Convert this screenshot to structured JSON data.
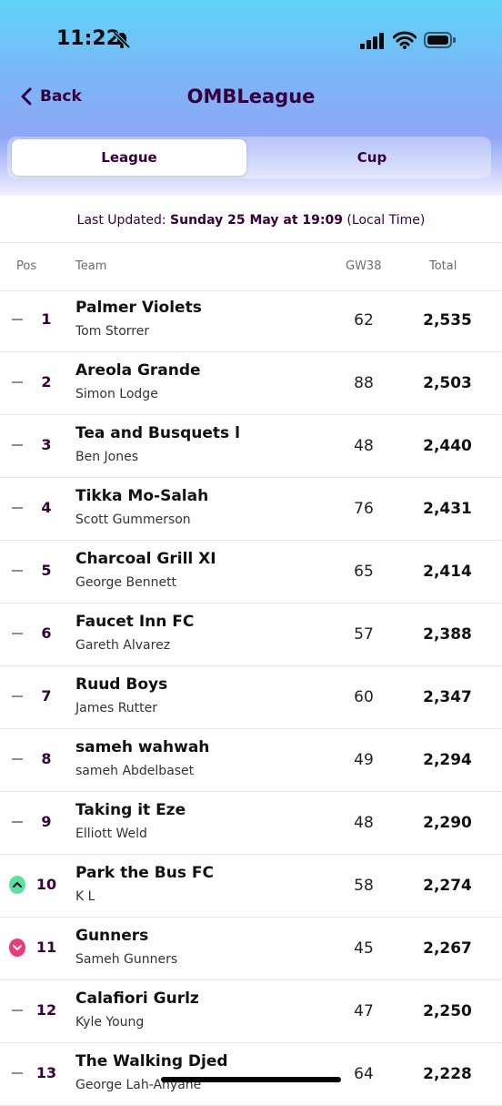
{
  "status_bar": {
    "time": "11:22"
  },
  "nav": {
    "back_label": "Back",
    "title": "OMBLeague"
  },
  "tabs": [
    {
      "label": "League",
      "active": true
    },
    {
      "label": "Cup",
      "active": false
    }
  ],
  "last_updated": {
    "prefix": "Last Updated:",
    "date": "Sunday 25 May at 19:09",
    "suffix": "(Local Time)"
  },
  "columns": {
    "pos": "Pos",
    "team": "Team",
    "gw": "GW38",
    "total": "Total"
  },
  "colors": {
    "up": "#58e39a",
    "down": "#e93b7a",
    "same": "#8e8e97",
    "brand": "#37003c"
  },
  "rows": [
    {
      "pos": "1",
      "team": "Palmer Violets",
      "manager": "Tom Storrer",
      "gw": "62",
      "total": "2,535",
      "move": "same"
    },
    {
      "pos": "2",
      "team": "Areola Grande",
      "manager": "Simon Lodge",
      "gw": "88",
      "total": "2,503",
      "move": "same"
    },
    {
      "pos": "3",
      "team": "Tea and Busquets l",
      "manager": "Ben Jones",
      "gw": "48",
      "total": "2,440",
      "move": "same"
    },
    {
      "pos": "4",
      "team": "Tikka Mo-Salah",
      "manager": "Scott Gummerson",
      "gw": "76",
      "total": "2,431",
      "move": "same"
    },
    {
      "pos": "5",
      "team": "Charcoal Grill XI",
      "manager": "George Bennett",
      "gw": "65",
      "total": "2,414",
      "move": "same"
    },
    {
      "pos": "6",
      "team": "Faucet Inn FC",
      "manager": "Gareth Alvarez",
      "gw": "57",
      "total": "2,388",
      "move": "same"
    },
    {
      "pos": "7",
      "team": "Ruud Boys",
      "manager": "James Rutter",
      "gw": "60",
      "total": "2,347",
      "move": "same"
    },
    {
      "pos": "8",
      "team": "sameh wahwah",
      "manager": "sameh Abdelbaset",
      "gw": "49",
      "total": "2,294",
      "move": "same"
    },
    {
      "pos": "9",
      "team": "Taking it Eze",
      "manager": "Elliott Weld",
      "gw": "48",
      "total": "2,290",
      "move": "same"
    },
    {
      "pos": "10",
      "team": "Park the Bus FC",
      "manager": "K L",
      "gw": "58",
      "total": "2,274",
      "move": "up"
    },
    {
      "pos": "11",
      "team": "Gunners",
      "manager": "Sameh Gunners",
      "gw": "45",
      "total": "2,267",
      "move": "down"
    },
    {
      "pos": "12",
      "team": "Calafiori Gurlz",
      "manager": "Kyle Young",
      "gw": "47",
      "total": "2,250",
      "move": "same"
    },
    {
      "pos": "13",
      "team": "The Walking Djed",
      "manager": "George Lah-Anyane",
      "gw": "64",
      "total": "2,228",
      "move": "same"
    }
  ]
}
